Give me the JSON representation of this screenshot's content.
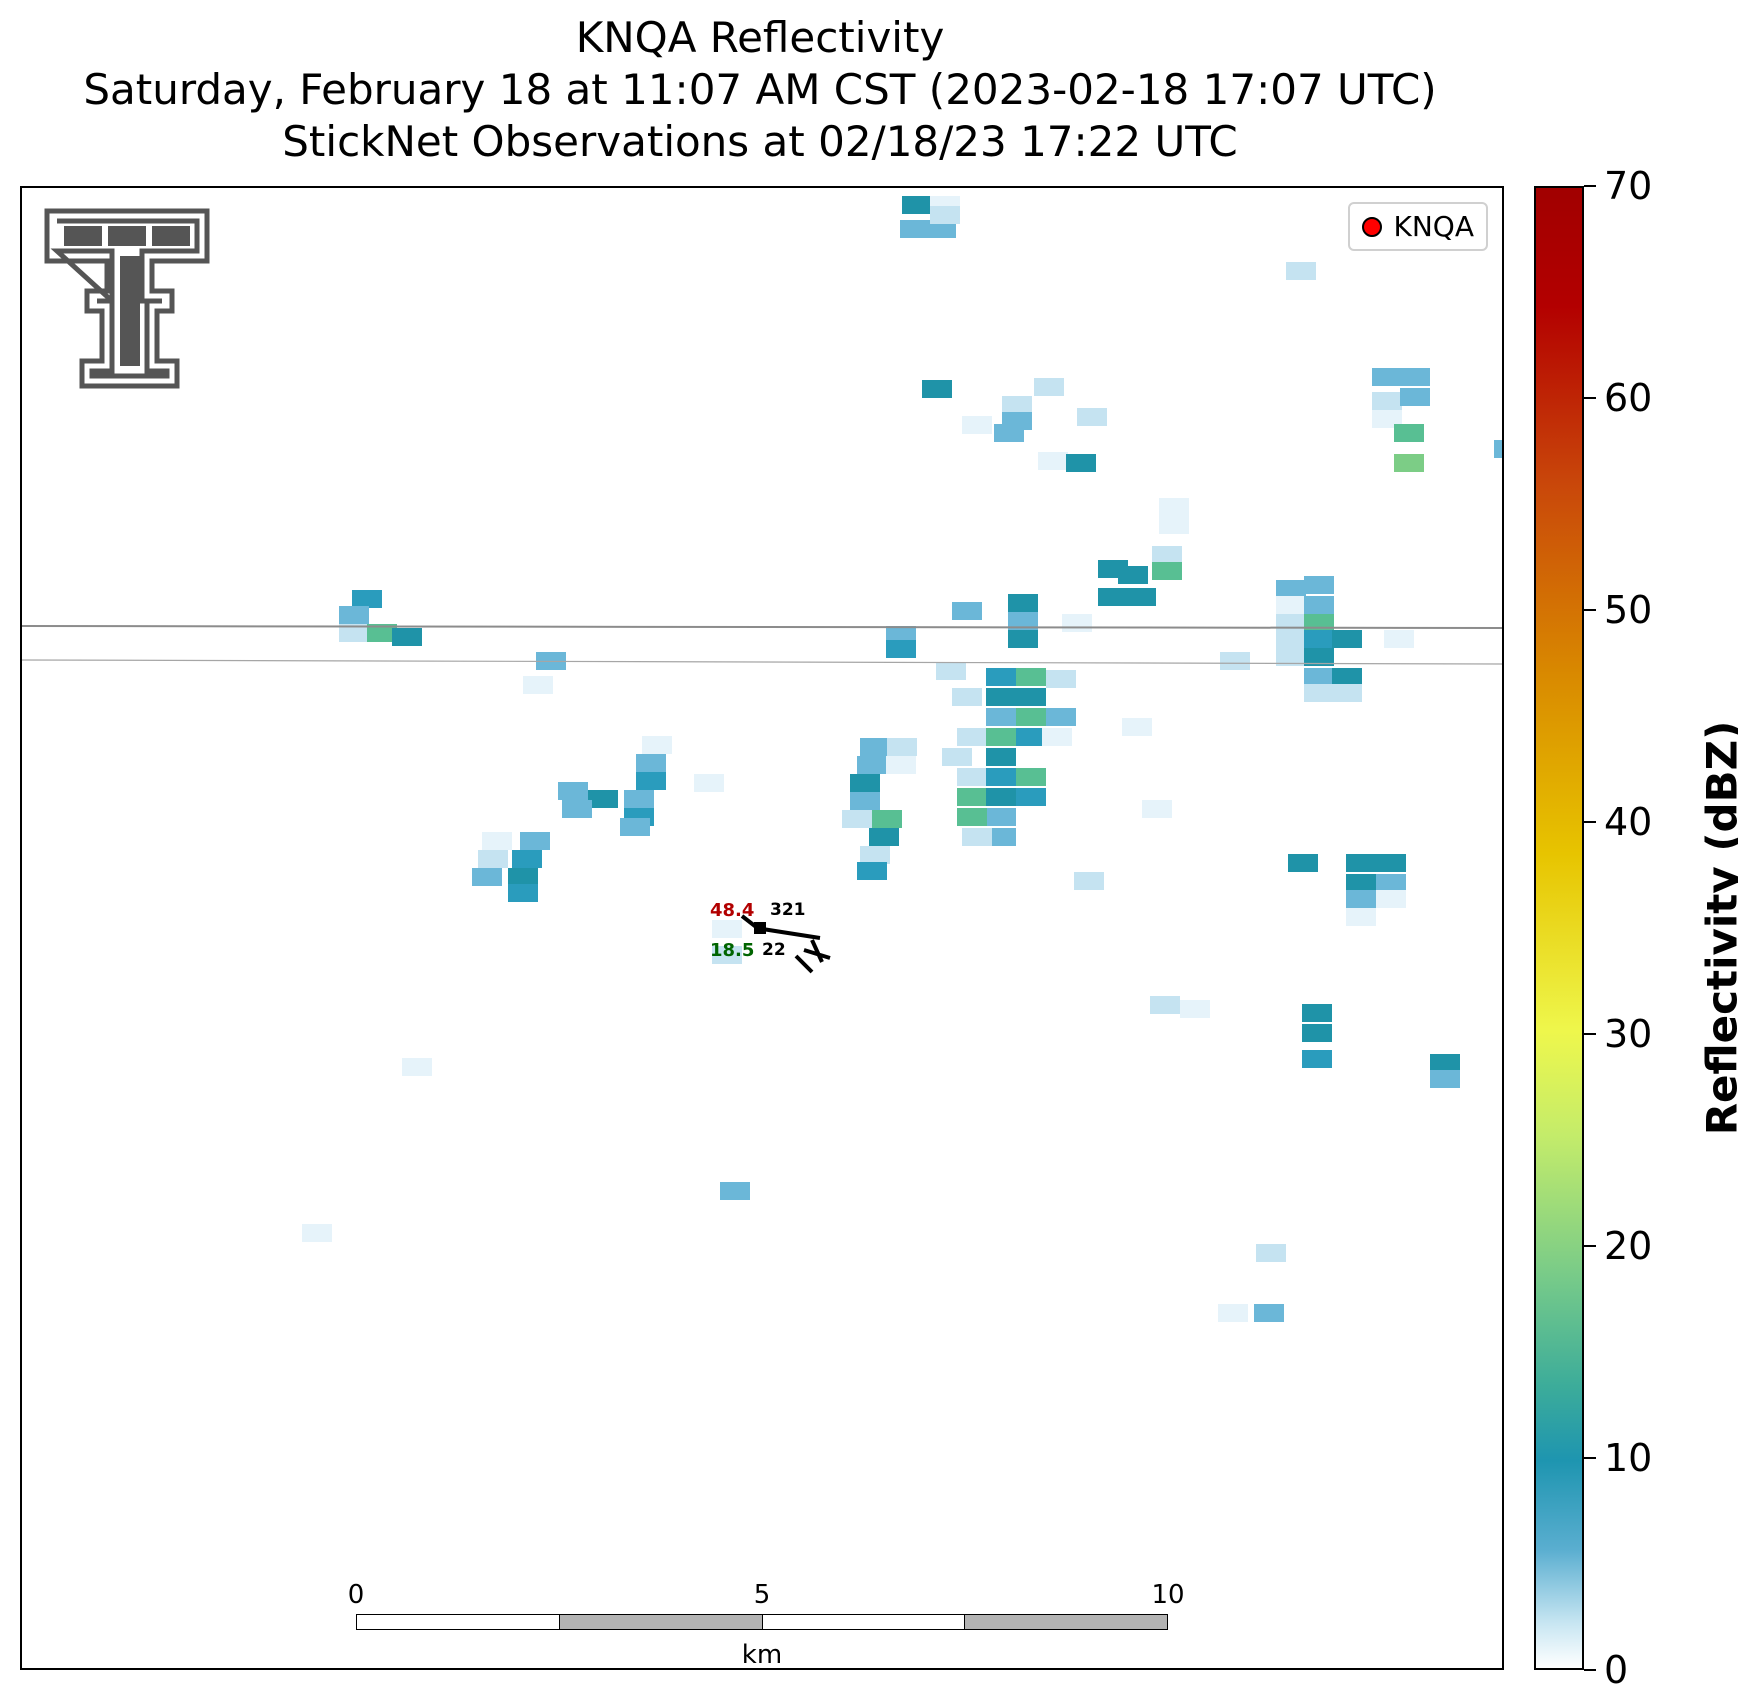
{
  "title": {
    "line1": "KNQA Reflectivity",
    "line2": "Saturday, February 18 at 11:07 AM CST (2023-02-18 17:07 UTC)",
    "line3": "StickNet Observations at 02/18/23 17:22 UTC"
  },
  "legend": {
    "label": "KNQA",
    "marker_color": "#ff0000"
  },
  "station": {
    "temperature": "48.4",
    "dewpoint": "18.5",
    "pressure": "321",
    "wind_label": "22"
  },
  "scale_bar": {
    "ticks": [
      "0",
      "5",
      "10"
    ],
    "unit": "km"
  },
  "colorbar": {
    "label": "Reflectivity (dBZ)",
    "ticks": [
      "0",
      "10",
      "20",
      "30",
      "40",
      "50",
      "60",
      "70"
    ],
    "min": 0,
    "max": 70
  },
  "colors": {
    "temperature": "#b20000",
    "dewpoint": "#006400",
    "scale_gray": "#b3b3b3"
  }
}
